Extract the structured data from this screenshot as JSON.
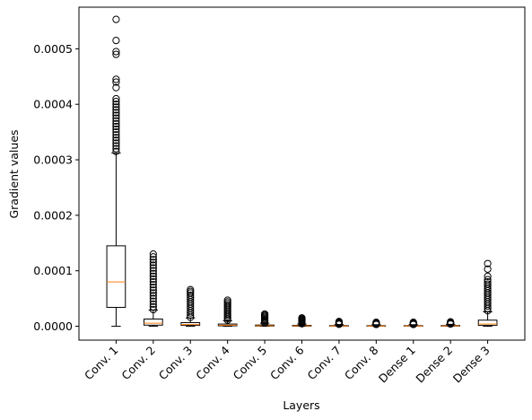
{
  "chart_data": {
    "type": "box",
    "title": "",
    "xlabel": "Layers",
    "ylabel": "Gradient values",
    "ylim": [
      -2.5e-05,
      0.000575
    ],
    "yticks": [
      0.0,
      0.0001,
      0.0002,
      0.0003,
      0.0004,
      0.0005
    ],
    "ytick_labels": [
      "0.0000",
      "0.0001",
      "0.0002",
      "0.0003",
      "0.0004",
      "0.0005"
    ],
    "grid": false,
    "colors": {
      "box": "#000000",
      "median": "#ff7f0e",
      "flier": "#000000"
    },
    "categories": [
      "Conv. 1",
      "Conv. 2",
      "Conv. 3",
      "Conv. 4",
      "Conv. 5",
      "Conv. 6",
      "Conv. 7",
      "Conv. 8",
      "Dense 1",
      "Dense 2",
      "Dense 3"
    ],
    "boxes": [
      {
        "name": "Conv. 1",
        "whislo": 0.0,
        "q1": 3.4e-05,
        "med": 8e-05,
        "q3": 0.000145,
        "whishi": 0.000312,
        "fliers": [
          0.000315,
          0.00032,
          0.000325,
          0.00033,
          0.000335,
          0.00034,
          0.000345,
          0.00035,
          0.000355,
          0.00036,
          0.000365,
          0.00037,
          0.000375,
          0.00038,
          0.000385,
          0.00039,
          0.000395,
          0.0004,
          0.000405,
          0.00041,
          0.00043,
          0.00044,
          0.000445,
          0.00049,
          0.000495,
          0.000515,
          0.000553
        ]
      },
      {
        "name": "Conv. 2",
        "whislo": 0.0,
        "q1": 2e-06,
        "med": 5.5e-06,
        "q3": 1.3e-05,
        "whishi": 2.9e-05,
        "fliers": [
          3e-05,
          3.5e-05,
          4e-05,
          4.5e-05,
          5e-05,
          5.5e-05,
          6e-05,
          6.5e-05,
          7e-05,
          7.5e-05,
          8e-05,
          8.5e-05,
          9e-05,
          9.5e-05,
          0.0001,
          0.000105,
          0.00011,
          0.000115,
          0.00012,
          0.000125,
          0.00013
        ]
      },
      {
        "name": "Conv. 3",
        "whislo": 0.0,
        "q1": 1.5e-06,
        "med": 3e-06,
        "q3": 6.5e-06,
        "whishi": 1.5e-05,
        "fliers": [
          1.6e-05,
          2e-05,
          2.4e-05,
          2.8e-05,
          3.2e-05,
          3.6e-05,
          4e-05,
          4.4e-05,
          4.8e-05,
          5.2e-05,
          5.6e-05,
          6e-05,
          6.3e-05,
          6.6e-05
        ]
      },
      {
        "name": "Conv. 4",
        "whislo": 0.0,
        "q1": 8e-07,
        "med": 1.8e-06,
        "q3": 4e-06,
        "whishi": 1e-05,
        "fliers": [
          1.1e-05,
          1.4e-05,
          1.7e-05,
          2e-05,
          2.3e-05,
          2.6e-05,
          2.9e-05,
          3.2e-05,
          3.5e-05,
          3.8e-05,
          4.1e-05,
          4.4e-05,
          4.7e-05
        ]
      },
      {
        "name": "Conv. 5",
        "whislo": 0.0,
        "q1": 4e-07,
        "med": 1e-06,
        "q3": 2.2e-06,
        "whishi": 5.5e-06,
        "fliers": [
          6e-06,
          8e-06,
          1e-05,
          1.2e-05,
          1.4e-05,
          1.6e-05,
          1.8e-05,
          2e-05,
          2.2e-05
        ]
      },
      {
        "name": "Conv. 6",
        "whislo": 0.0,
        "q1": 3e-07,
        "med": 8e-07,
        "q3": 1.7e-06,
        "whishi": 4e-06,
        "fliers": [
          4.5e-06,
          6e-06,
          7.5e-06,
          9e-06,
          1.05e-05,
          1.2e-05,
          1.35e-05,
          1.5e-05
        ]
      },
      {
        "name": "Conv. 7",
        "whislo": 0.0,
        "q1": 2e-07,
        "med": 5e-07,
        "q3": 1.2e-06,
        "whishi": 3e-06,
        "fliers": [
          3.5e-06,
          4.5e-06,
          5.5e-06,
          6.5e-06,
          7.5e-06,
          8.5e-06
        ]
      },
      {
        "name": "Conv. 8",
        "whislo": 0.0,
        "q1": 2e-07,
        "med": 5e-07,
        "q3": 1.1e-06,
        "whishi": 2.8e-06,
        "fliers": [
          3.2e-06,
          4.2e-06,
          5.2e-06,
          6.2e-06,
          7.2e-06
        ]
      },
      {
        "name": "Dense 1",
        "whislo": 0.0,
        "q1": 2e-07,
        "med": 5e-07,
        "q3": 1.1e-06,
        "whishi": 2.8e-06,
        "fliers": [
          3.2e-06,
          4.2e-06,
          5.2e-06,
          6.2e-06,
          7.2e-06
        ]
      },
      {
        "name": "Dense 2",
        "whislo": 0.0,
        "q1": 3e-07,
        "med": 7e-07,
        "q3": 1.4e-06,
        "whishi": 3.5e-06,
        "fliers": [
          4e-06,
          5e-06,
          6e-06,
          7e-06,
          8e-06
        ]
      },
      {
        "name": "Dense 3",
        "whislo": 0.0,
        "q1": 1.5e-06,
        "med": 4e-06,
        "q3": 1.1e-05,
        "whishi": 2.6e-05,
        "fliers": [
          2.8e-05,
          3.2e-05,
          3.6e-05,
          4e-05,
          4.4e-05,
          4.8e-05,
          5.2e-05,
          5.6e-05,
          6e-05,
          6.4e-05,
          6.8e-05,
          7.2e-05,
          7.6e-05,
          8e-05,
          8.4e-05,
          9e-05,
          0.000103,
          0.000113
        ]
      }
    ]
  }
}
